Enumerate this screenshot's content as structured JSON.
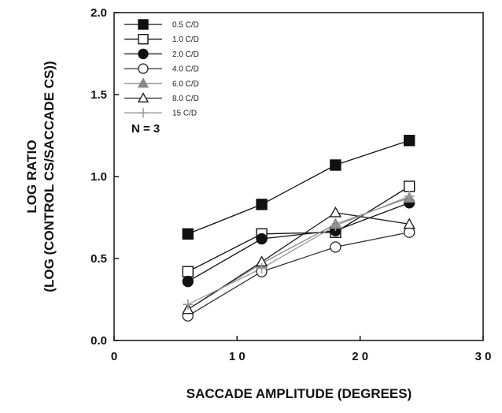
{
  "chart_data": {
    "type": "line",
    "title": "",
    "xlabel": "SACCADE AMPLITUDE (DEGREES)",
    "ylabel_line1": "LOG RATIO",
    "ylabel_line2": "(LOG (CONTROL CS/SACCADE CS))",
    "xlim": [
      0,
      30
    ],
    "ylim": [
      0,
      2.0
    ],
    "x_ticks": [
      0,
      10,
      20,
      30
    ],
    "x_tick_labels": [
      "0",
      "1 0",
      "2 0",
      "3 0"
    ],
    "y_ticks": [
      0,
      0.5,
      1.0,
      1.5,
      2.0
    ],
    "y_tick_labels": [
      "0.0",
      "0.5",
      "1.0",
      "1.5",
      "2.0"
    ],
    "grid": false,
    "legend_position": "top-left",
    "annotation": "N = 3",
    "x": [
      6,
      12,
      18,
      24
    ],
    "series": [
      {
        "name": "0.5 C/D",
        "values": [
          0.65,
          0.83,
          1.07,
          1.22
        ],
        "marker": "square-filled",
        "color": "#111111"
      },
      {
        "name": "1.0 C/D",
        "values": [
          0.42,
          0.65,
          0.66,
          0.94
        ],
        "marker": "square-open",
        "color": "#111111"
      },
      {
        "name": "2.0 C/D",
        "values": [
          0.36,
          0.62,
          0.67,
          0.84
        ],
        "marker": "circle-filled",
        "color": "#111111"
      },
      {
        "name": "4.0 C/D",
        "values": [
          0.15,
          0.42,
          0.57,
          0.66
        ],
        "marker": "circle-open",
        "color": "#333333"
      },
      {
        "name": "6.0 C/D",
        "values": [
          0.19,
          0.47,
          0.71,
          0.87
        ],
        "marker": "triangle-filled",
        "color": "#888888"
      },
      {
        "name": "8.0 C/D",
        "values": [
          0.19,
          0.48,
          0.78,
          0.71
        ],
        "marker": "triangle-open",
        "color": "#222222"
      },
      {
        "name": "15 C/D",
        "values": [
          0.22,
          0.44,
          0.7,
          0.88
        ],
        "marker": "plus",
        "color": "#999999"
      }
    ]
  }
}
